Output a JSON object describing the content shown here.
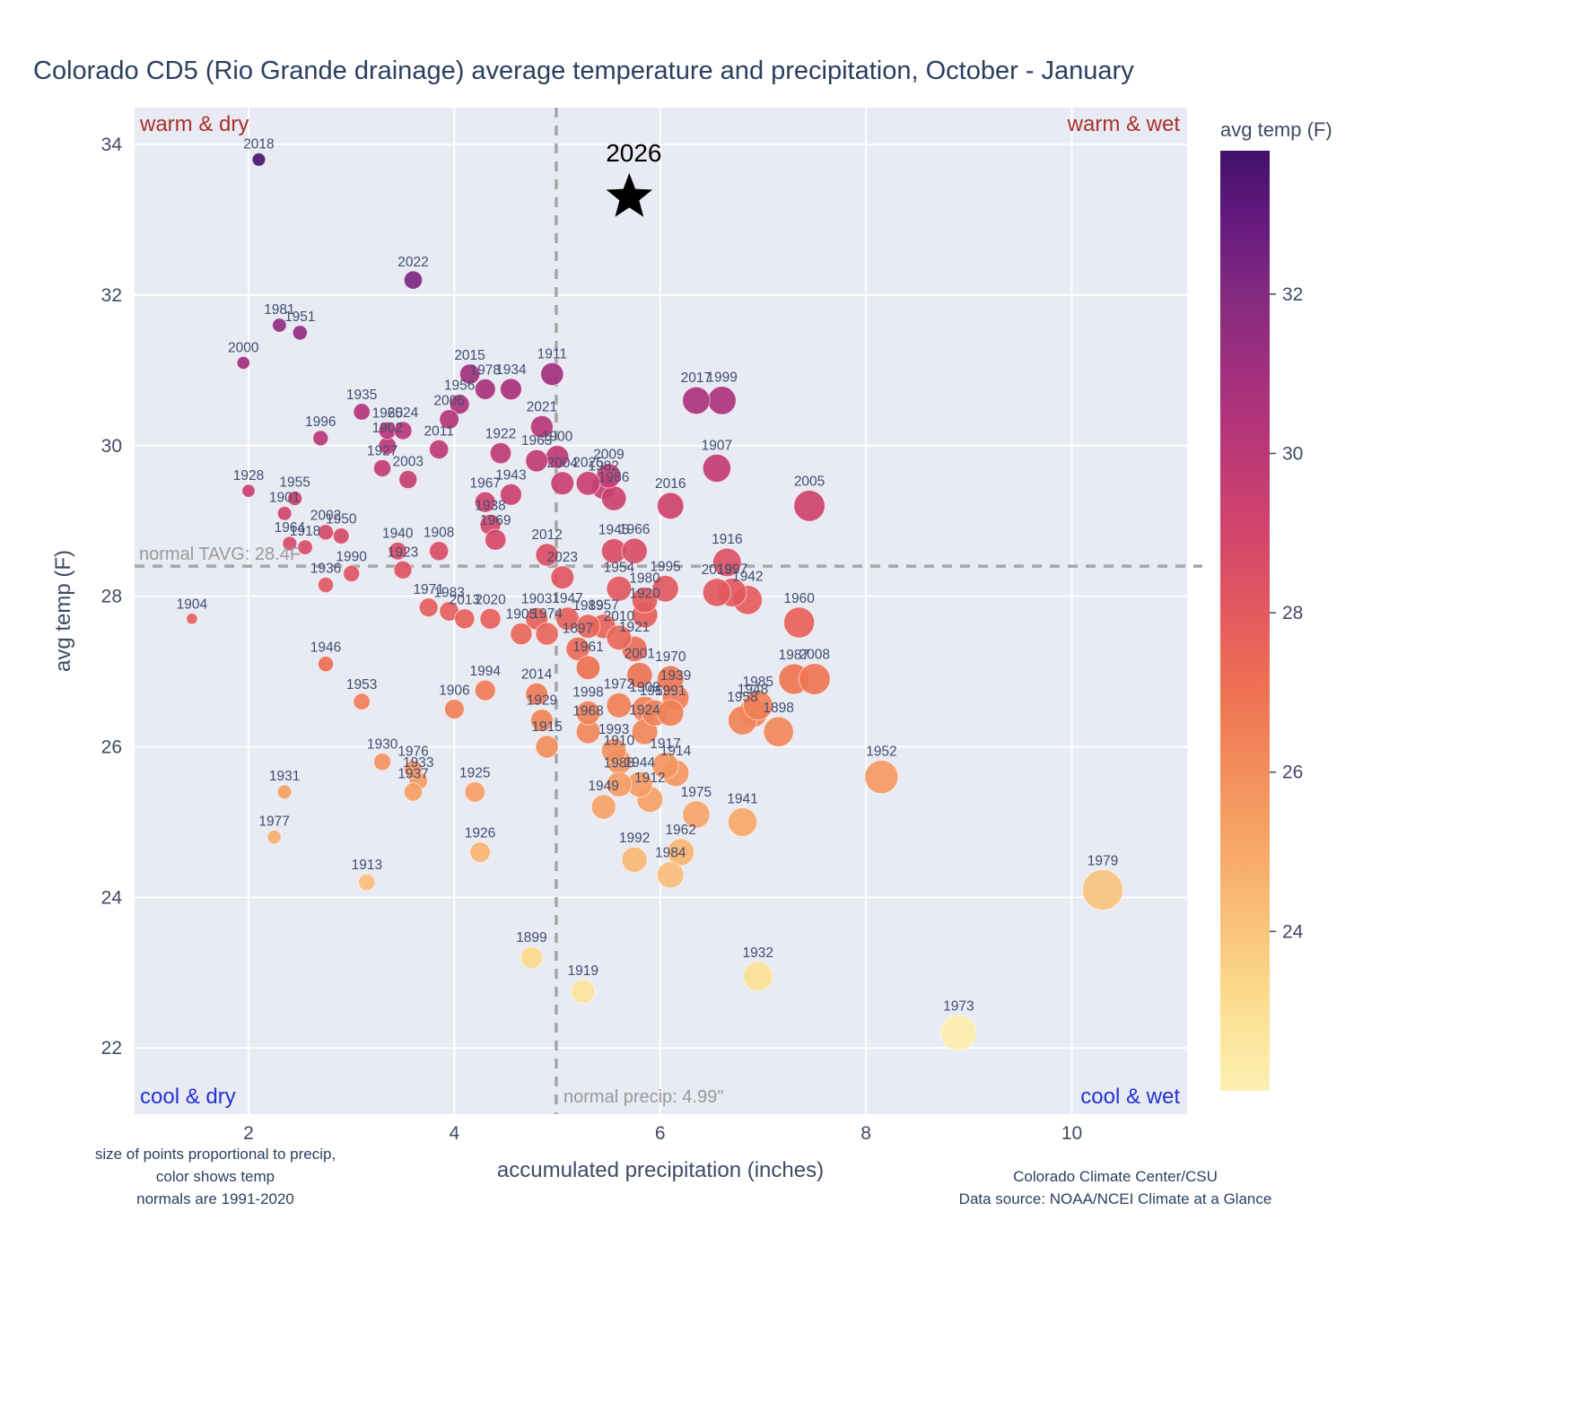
{
  "page": {
    "title": "Colorado CD5 (Rio Grande drainage) average temperature and precipitation, October - January"
  },
  "footer": {
    "left": [
      "size of points proportional to precip,",
      "color shows temp",
      "normals are 1991-2020"
    ],
    "right": [
      "Colorado Climate Center/CSU",
      "Data source: NOAA/NCEI Climate at a Glance"
    ]
  },
  "chart_data": {
    "type": "scatter",
    "title": "Colorado CD5 (Rio Grande drainage) average temperature and precipitation, October - January",
    "xlabel": "accumulated precipitation (inches)",
    "ylabel": "avg temp (F)",
    "xlim": [
      0.893,
      11.12
    ],
    "ylim": [
      21.12,
      34.49
    ],
    "x_ticks": [
      2,
      4,
      6,
      8,
      10
    ],
    "y_ticks": [
      22,
      24,
      26,
      28,
      30,
      32,
      34
    ],
    "grid": true,
    "size_encoding": "point size proportional to accumulated precipitation",
    "color_encoding": "point color shows avg temp (F), dark purple = warm, light yellow = cool",
    "normal_tavg": 28.4,
    "normal_precip": 4.99,
    "reference_labels": {
      "tavg": "normal TAVG: 28.4F",
      "precip": "normal precip: 4.99\""
    },
    "quadrants": {
      "top_left": "warm & dry",
      "top_right": "warm & wet",
      "bottom_left": "cool & dry",
      "bottom_right": "cool & wet"
    },
    "highlight": {
      "year": "2026",
      "precip": 5.7,
      "temp": 33.3,
      "marker": "star",
      "color": "#000000"
    },
    "colorbar": {
      "title": "avg temp (F)",
      "ticks": [
        24,
        26,
        28,
        30,
        32
      ],
      "min": 22.0,
      "max": 33.8
    },
    "color_stops": [
      [
        22,
        "#fdf0b2"
      ],
      [
        23,
        "#fbdf92"
      ],
      [
        24,
        "#f9c57e"
      ],
      [
        25,
        "#f7a869"
      ],
      [
        26,
        "#f28e5c"
      ],
      [
        27,
        "#ee7252"
      ],
      [
        28,
        "#e35a5e"
      ],
      [
        29,
        "#d2456b"
      ],
      [
        30,
        "#bc3876"
      ],
      [
        31,
        "#a22f7e"
      ],
      [
        32,
        "#842a80"
      ],
      [
        33,
        "#62187e"
      ],
      [
        34,
        "#421269"
      ]
    ],
    "plot_bg": "#e8eaf4",
    "grid_color": "#ffffff",
    "points": [
      [
        1897,
        5.2,
        27.3
      ],
      [
        1898,
        7.15,
        26.2
      ],
      [
        1899,
        4.75,
        23.2
      ],
      [
        1900,
        5.0,
        29.85
      ],
      [
        1901,
        2.35,
        29.1
      ],
      [
        1902,
        3.35,
        30.0
      ],
      [
        1903,
        4.8,
        27.7
      ],
      [
        1904,
        1.45,
        27.7
      ],
      [
        1905,
        4.65,
        27.5
      ],
      [
        1906,
        4.0,
        26.5
      ],
      [
        1907,
        6.55,
        29.7
      ],
      [
        1908,
        3.85,
        28.6
      ],
      [
        1909,
        5.85,
        26.5
      ],
      [
        1910,
        5.6,
        25.8
      ],
      [
        1911,
        4.95,
        30.95
      ],
      [
        1912,
        5.9,
        25.3
      ],
      [
        1913,
        3.15,
        24.2
      ],
      [
        1914,
        6.15,
        25.65
      ],
      [
        1915,
        4.9,
        26.0
      ],
      [
        1916,
        6.65,
        28.45
      ],
      [
        1917,
        6.05,
        25.75
      ],
      [
        1918,
        2.55,
        28.65
      ],
      [
        1919,
        5.25,
        22.75
      ],
      [
        1920,
        5.85,
        27.75
      ],
      [
        1921,
        5.75,
        27.3
      ],
      [
        1922,
        4.45,
        29.9
      ],
      [
        1923,
        3.5,
        28.35
      ],
      [
        1924,
        5.85,
        26.2
      ],
      [
        1925,
        4.2,
        25.4
      ],
      [
        1926,
        4.25,
        24.6
      ],
      [
        1927,
        3.3,
        29.7
      ],
      [
        1928,
        2.0,
        29.4
      ],
      [
        1929,
        4.85,
        26.35
      ],
      [
        1930,
        3.3,
        25.8
      ],
      [
        1931,
        2.35,
        25.4
      ],
      [
        1932,
        6.95,
        22.95
      ],
      [
        1933,
        3.65,
        25.55
      ],
      [
        1934,
        4.55,
        30.75
      ],
      [
        1935,
        3.1,
        30.45
      ],
      [
        1936,
        2.75,
        28.15
      ],
      [
        1937,
        3.6,
        25.4
      ],
      [
        1938,
        4.35,
        28.95
      ],
      [
        1939,
        6.15,
        26.65
      ],
      [
        1940,
        3.45,
        28.6
      ],
      [
        1941,
        6.8,
        25.0
      ],
      [
        1942,
        6.85,
        27.95
      ],
      [
        1943,
        4.55,
        29.35
      ],
      [
        1944,
        5.8,
        25.5
      ],
      [
        1945,
        5.55,
        28.6
      ],
      [
        1946,
        2.75,
        27.1
      ],
      [
        1947,
        5.1,
        27.7
      ],
      [
        1948,
        6.9,
        26.45
      ],
      [
        1949,
        5.45,
        25.2
      ],
      [
        1950,
        2.9,
        28.8
      ],
      [
        1951,
        2.5,
        31.5
      ],
      [
        1952,
        8.15,
        25.6
      ],
      [
        1953,
        3.1,
        26.6
      ],
      [
        1954,
        5.6,
        28.1
      ],
      [
        1955,
        2.45,
        29.3
      ],
      [
        1956,
        4.05,
        30.55
      ],
      [
        1957,
        5.45,
        27.6
      ],
      [
        1958,
        6.8,
        26.35
      ],
      [
        1959,
        5.95,
        26.45
      ],
      [
        1960,
        7.35,
        27.65
      ],
      [
        1961,
        5.3,
        27.05
      ],
      [
        1962,
        6.2,
        24.6
      ],
      [
        1963,
        4.8,
        29.8
      ],
      [
        1964,
        2.4,
        28.7
      ],
      [
        1965,
        3.35,
        30.2
      ],
      [
        1966,
        5.75,
        28.6
      ],
      [
        1967,
        4.3,
        29.25
      ],
      [
        1968,
        5.3,
        26.2
      ],
      [
        1969,
        4.4,
        28.75
      ],
      [
        1970,
        6.1,
        26.9
      ],
      [
        1971,
        3.75,
        27.85
      ],
      [
        1972,
        5.6,
        26.55
      ],
      [
        1973,
        8.9,
        22.2
      ],
      [
        1974,
        4.9,
        27.5
      ],
      [
        1975,
        6.35,
        25.1
      ],
      [
        1976,
        3.6,
        25.7
      ],
      [
        1977,
        2.25,
        24.8
      ],
      [
        1978,
        4.3,
        30.75
      ],
      [
        1979,
        10.3,
        24.1
      ],
      [
        1980,
        5.85,
        27.95
      ],
      [
        1981,
        2.3,
        31.6
      ],
      [
        1982,
        5.45,
        29.45
      ],
      [
        1983,
        3.95,
        27.8
      ],
      [
        1984,
        6.1,
        24.3
      ],
      [
        1985,
        6.95,
        26.55
      ],
      [
        1986,
        5.55,
        29.3
      ],
      [
        1987,
        7.3,
        26.9
      ],
      [
        1988,
        5.6,
        25.5
      ],
      [
        1989,
        5.3,
        27.6
      ],
      [
        1990,
        3.0,
        28.3
      ],
      [
        1991,
        6.1,
        26.45
      ],
      [
        1992,
        5.75,
        24.5
      ],
      [
        1993,
        5.55,
        25.95
      ],
      [
        1994,
        4.3,
        26.75
      ],
      [
        1995,
        6.05,
        28.1
      ],
      [
        1996,
        2.7,
        30.1
      ],
      [
        1997,
        6.7,
        28.05
      ],
      [
        1998,
        5.3,
        26.45
      ],
      [
        1999,
        6.6,
        30.6
      ],
      [
        2000,
        1.95,
        31.1
      ],
      [
        2001,
        5.8,
        26.95
      ],
      [
        2002,
        2.75,
        28.85
      ],
      [
        2003,
        3.55,
        29.55
      ],
      [
        2004,
        5.05,
        29.5
      ],
      [
        2005,
        7.45,
        29.2
      ],
      [
        2006,
        3.95,
        30.35
      ],
      [
        2008,
        7.5,
        26.9
      ],
      [
        2009,
        5.5,
        29.6
      ],
      [
        2010,
        5.6,
        27.45
      ],
      [
        2011,
        3.85,
        29.95
      ],
      [
        2012,
        4.9,
        28.55
      ],
      [
        2013,
        4.1,
        27.7
      ],
      [
        2014,
        4.8,
        26.7
      ],
      [
        2015,
        4.15,
        30.95
      ],
      [
        2016,
        6.1,
        29.2
      ],
      [
        2017,
        6.35,
        30.6
      ],
      [
        2018,
        2.1,
        33.8
      ],
      [
        2019,
        6.55,
        28.05
      ],
      [
        2020,
        4.35,
        27.7
      ],
      [
        2021,
        4.85,
        30.25
      ],
      [
        2022,
        3.6,
        32.2
      ],
      [
        2023,
        5.05,
        28.25
      ],
      [
        2024,
        3.5,
        30.2
      ],
      [
        2025,
        5.3,
        29.5
      ]
    ]
  }
}
